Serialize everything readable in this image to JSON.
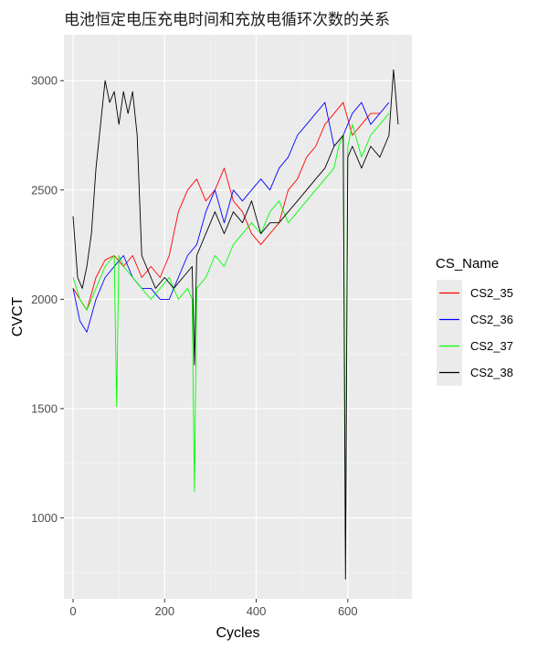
{
  "chart_data": {
    "type": "line",
    "title": "电池恒定电压充电时间和充放电循环次数的关系",
    "xlabel": "Cycles",
    "ylabel": "CVCT",
    "xlim": [
      -20,
      740
    ],
    "ylim": [
      630,
      3210
    ],
    "xticks": [
      0,
      200,
      400,
      600
    ],
    "yticks": [
      1000,
      1500,
      2000,
      2500,
      3000
    ],
    "grid": true,
    "legend": {
      "title": "CS_Name",
      "position": "right"
    },
    "series": [
      {
        "name": "CS2_35",
        "color": "#ff0000",
        "x": [
          0,
          15,
          30,
          50,
          70,
          90,
          110,
          130,
          150,
          170,
          190,
          210,
          230,
          250,
          270,
          290,
          310,
          330,
          350,
          370,
          390,
          410,
          430,
          450,
          470,
          490,
          510,
          530,
          550,
          570,
          590,
          610,
          630,
          650,
          670
        ],
        "y": [
          2050,
          2000,
          1950,
          2100,
          2180,
          2200,
          2150,
          2200,
          2100,
          2150,
          2100,
          2200,
          2400,
          2500,
          2550,
          2450,
          2500,
          2600,
          2450,
          2400,
          2300,
          2250,
          2300,
          2350,
          2500,
          2550,
          2650,
          2700,
          2800,
          2850,
          2900,
          2750,
          2800,
          2850,
          2850
        ]
      },
      {
        "name": "CS2_36",
        "color": "#0000ff",
        "x": [
          0,
          15,
          30,
          50,
          70,
          90,
          110,
          130,
          150,
          170,
          190,
          210,
          230,
          250,
          270,
          290,
          310,
          330,
          350,
          370,
          390,
          410,
          430,
          450,
          470,
          490,
          510,
          530,
          550,
          570,
          590,
          610,
          630,
          650,
          670,
          690
        ],
        "y": [
          2050,
          1900,
          1850,
          2000,
          2100,
          2150,
          2200,
          2100,
          2050,
          2050,
          2000,
          2000,
          2100,
          2200,
          2250,
          2400,
          2500,
          2350,
          2500,
          2450,
          2500,
          2550,
          2500,
          2600,
          2650,
          2750,
          2800,
          2850,
          2900,
          2700,
          2750,
          2850,
          2900,
          2800,
          2850,
          2900
        ]
      },
      {
        "name": "CS2_37",
        "color": "#00ff00",
        "x": [
          0,
          15,
          30,
          50,
          70,
          90,
          95,
          100,
          110,
          130,
          150,
          170,
          190,
          210,
          230,
          250,
          260,
          265,
          270,
          290,
          310,
          330,
          350,
          370,
          390,
          410,
          430,
          450,
          470,
          490,
          510,
          530,
          550,
          570,
          580,
          590,
          595,
          600,
          610,
          630,
          650,
          670,
          690
        ],
        "y": [
          2100,
          2000,
          1950,
          2050,
          2150,
          2200,
          1510,
          2200,
          2150,
          2100,
          2050,
          2000,
          2050,
          2100,
          2000,
          2050,
          2000,
          1120,
          2050,
          2100,
          2200,
          2150,
          2250,
          2300,
          2350,
          2300,
          2400,
          2450,
          2350,
          2400,
          2450,
          2500,
          2550,
          2600,
          2700,
          2750,
          920,
          2700,
          2800,
          2650,
          2750,
          2800,
          2850
        ]
      },
      {
        "name": "CS2_38",
        "color": "#000000",
        "x": [
          0,
          10,
          20,
          30,
          40,
          50,
          60,
          70,
          80,
          90,
          100,
          110,
          120,
          130,
          140,
          150,
          160,
          180,
          200,
          220,
          240,
          260,
          265,
          270,
          290,
          310,
          330,
          350,
          370,
          390,
          410,
          430,
          450,
          470,
          490,
          510,
          530,
          550,
          570,
          590,
          595,
          600,
          610,
          630,
          650,
          670,
          690,
          700,
          710
        ],
        "y": [
          2380,
          2100,
          2050,
          2150,
          2300,
          2600,
          2800,
          3000,
          2900,
          2950,
          2800,
          2950,
          2850,
          2950,
          2750,
          2200,
          2150,
          2050,
          2100,
          2050,
          2100,
          2150,
          1700,
          2200,
          2300,
          2400,
          2300,
          2400,
          2350,
          2450,
          2300,
          2350,
          2350,
          2400,
          2450,
          2500,
          2550,
          2600,
          2700,
          2750,
          720,
          2650,
          2700,
          2600,
          2700,
          2650,
          2750,
          3050,
          2800
        ]
      }
    ]
  }
}
